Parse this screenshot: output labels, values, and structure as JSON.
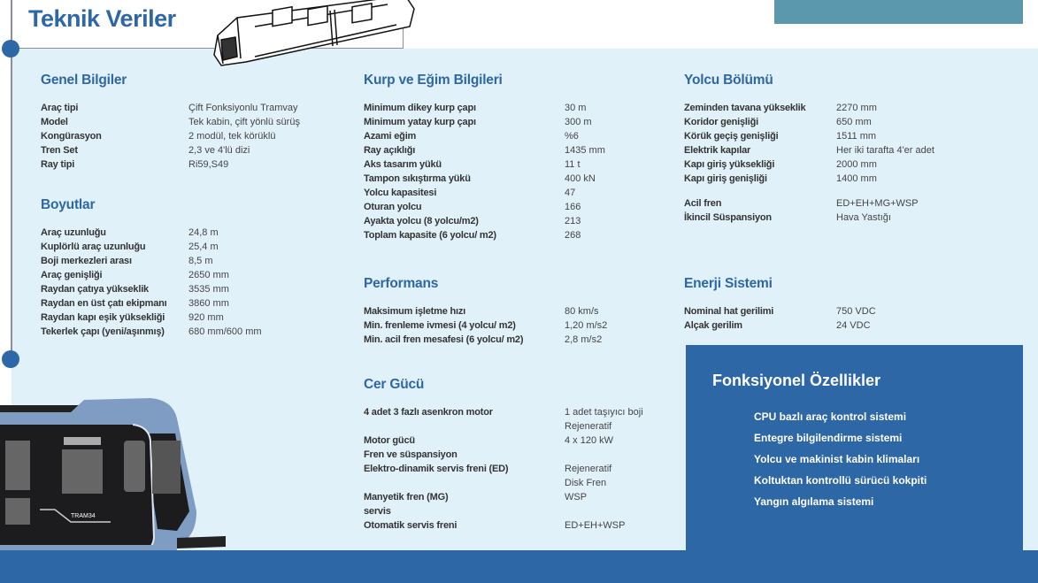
{
  "title": "Teknik Veriler",
  "colors": {
    "accent": "#2e67a6",
    "panel": "#e1f1fa",
    "teal": "#5b98ad"
  },
  "genel": {
    "heading": "Genel Bilgiler",
    "rows": [
      [
        "Araç tipi",
        "Çift Fonksiyonlu Tramvay"
      ],
      [
        "Model",
        "Tek kabin, çift yönlü sürüş"
      ],
      [
        "Kongürasyon",
        "2 modül, tek körüklü"
      ],
      [
        "Tren Set",
        "2,3 ve 4'lü dizi"
      ],
      [
        "Ray tipi",
        "Ri59,S49"
      ]
    ]
  },
  "boyutlar": {
    "heading": "Boyutlar",
    "rows": [
      [
        "Araç uzunluğu",
        "24,8 m"
      ],
      [
        "Kuplörlü araç uzunluğu",
        "25,4 m"
      ],
      [
        "Boji merkezleri arası",
        "8,5 m"
      ],
      [
        "Araç genişliği",
        "2650 mm"
      ],
      [
        "Raydan çatıya yükseklik",
        "3535 mm"
      ],
      [
        "Raydan en üst çatı ekipmanı",
        "3860 mm"
      ],
      [
        "Raydan kapı eşik yüksekliği",
        "920 mm"
      ],
      [
        "Tekerlek çapı (yeni/aşınmış)",
        "680 mm/600 mm"
      ]
    ]
  },
  "kurp": {
    "heading": "Kurp ve Eğim Bilgileri",
    "rows": [
      [
        "Minimum dikey kurp çapı",
        "30 m"
      ],
      [
        "Minimum yatay kurp çapı",
        "300 m"
      ],
      [
        "Azami eğim",
        "%6"
      ],
      [
        "Ray açıklığı",
        "1435 mm"
      ],
      [
        "Aks tasarım yükü",
        "11 t"
      ],
      [
        "Tampon sıkıştırma yükü",
        "400 kN"
      ],
      [
        "Yolcu kapasitesi",
        "47"
      ],
      [
        "Oturan yolcu",
        "166"
      ],
      [
        "Ayakta yolcu (8 yolcu/m2)",
        "213"
      ],
      [
        "Toplam kapasite (6 yolcu/ m2)",
        "268"
      ]
    ]
  },
  "performans": {
    "heading": "Performans",
    "rows": [
      [
        "Maksimum işletme hızı",
        "80 km/s"
      ],
      [
        "Min. frenleme ivmesi  (4 yolcu/ m2)",
        "1,20 m/s2"
      ],
      [
        "Min. acil fren mesafesi (6 yolcu/ m2)",
        "2,8 m/s2"
      ]
    ]
  },
  "cer": {
    "heading": "Cer Gücü",
    "rows": [
      [
        "4 adet 3 fazlı asenkron motor",
        "1 adet taşıyıcı boji"
      ],
      [
        "",
        "Rejeneratif"
      ],
      [
        "Motor gücü",
        "4 x 120 kW"
      ],
      [
        "Fren ve süspansiyon",
        ""
      ],
      [
        "Elektro-dinamik servis freni (ED)",
        "Rejeneratif"
      ],
      [
        "",
        "Disk Fren"
      ],
      [
        "Manyetik fren (MG)",
        "WSP"
      ],
      [
        "servis",
        ""
      ],
      [
        "Otomatik servis freni",
        "ED+EH+WSP"
      ]
    ]
  },
  "yolcu": {
    "heading": "Yolcu Bölümü",
    "rows": [
      [
        "Zeminden tavana yükseklik",
        "2270 mm"
      ],
      [
        "Koridor genişliği",
        "650 mm"
      ],
      [
        "Körük geçiş genişliği",
        "1511 mm"
      ],
      [
        "Elektrik kapılar",
        "Her iki tarafta 4'er adet"
      ],
      [
        "Kapı giriş yüksekliği",
        "2000 mm"
      ],
      [
        "Kapı giriş genişliği",
        "1400 mm"
      ]
    ],
    "rows2": [
      [
        "Acil fren",
        "ED+EH+MG+WSP"
      ],
      [
        "İkincil Süspansiyon",
        "Hava Yastığı"
      ]
    ]
  },
  "enerji": {
    "heading": "Enerji Sistemi",
    "rows": [
      [
        "Nominal hat gerilimi",
        "750 VDC"
      ],
      [
        "Alçak gerilim",
        "24 VDC"
      ]
    ]
  },
  "fonksiyonel": {
    "heading": "Fonksiyonel Özellikler",
    "items": [
      "CPU bazlı araç kontrol sistemi",
      "Entegre bilgilendirme sistemi",
      "Yolcu ve makinist kabin klimaları",
      "Koltuktan kontrollü sürücü kokpiti",
      "Yangın algılama sistemi"
    ]
  },
  "tram_logo": "TRAM34"
}
